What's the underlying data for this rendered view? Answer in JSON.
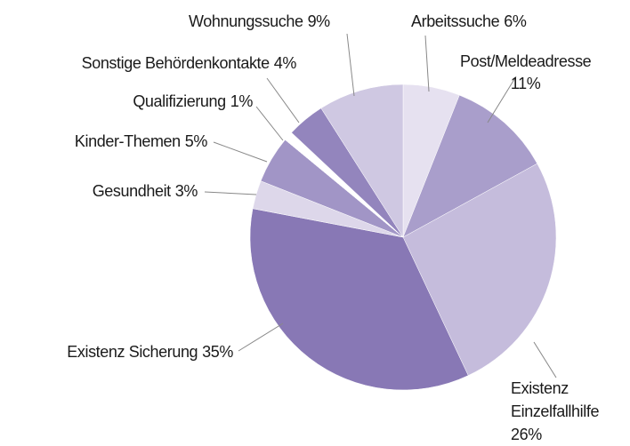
{
  "chart_data": {
    "type": "pie",
    "categories": [
      "Arbeitssuche",
      "Post/Meldeadresse",
      "Existenz Einzelfallhilfe",
      "Existenz Sicherung",
      "Gesundheit",
      "Kinder-Themen",
      "Qualifizierung",
      "Sonstige Behördenkontakte",
      "Wohnungssuche"
    ],
    "values": [
      6,
      11,
      26,
      35,
      3,
      5,
      1,
      4,
      9
    ],
    "value_labels": [
      "6%",
      "11%",
      "26%",
      "35%",
      "3%",
      "5%",
      "1%",
      "4%",
      "9%"
    ],
    "colors": [
      "#e6e1f0",
      "#a99ecb",
      "#c5bcdc",
      "#8878b5",
      "#ddd7ea",
      "#a195c6",
      "#ffffff",
      "#9385bd",
      "#cfc8e2"
    ]
  }
}
